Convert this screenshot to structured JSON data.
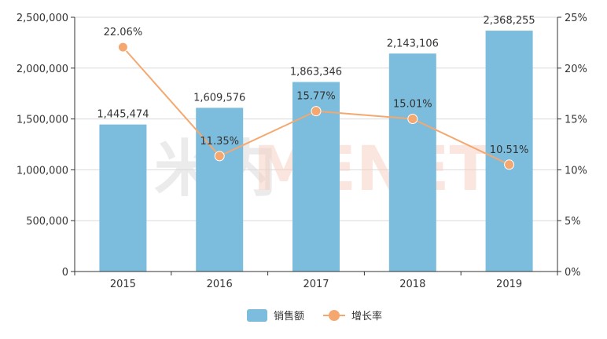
{
  "watermark": {
    "cn": "米内",
    "en": "MENET"
  },
  "legend": {
    "bar": "销售额",
    "line": "增长率"
  },
  "colors": {
    "bar": "#7cbcdc",
    "line": "#f4a870",
    "axis": "#333333",
    "grid": "#d9d9d9"
  },
  "chart_data": {
    "type": "bar",
    "categories": [
      "2015",
      "2016",
      "2017",
      "2018",
      "2019"
    ],
    "series": [
      {
        "name": "销售额",
        "type": "bar",
        "axis": "left",
        "values": [
          1445474,
          1609576,
          1863346,
          2143106,
          2368255
        ],
        "labels": [
          "1,445,474",
          "1,609,576",
          "1,863,346",
          "2,143,106",
          "2,368,255"
        ]
      },
      {
        "name": "增长率",
        "type": "line",
        "axis": "right",
        "values": [
          22.06,
          11.35,
          15.77,
          15.01,
          10.51
        ],
        "labels": [
          "22.06%",
          "11.35%",
          "15.77%",
          "15.01%",
          "10.51%"
        ]
      }
    ],
    "y_left": {
      "min": 0,
      "max": 2500000,
      "ticks": [
        "0",
        "500,000",
        "1,000,000",
        "1,500,000",
        "2,000,000",
        "2,500,000"
      ]
    },
    "y_right": {
      "min": 0,
      "max": 25,
      "ticks": [
        "0%",
        "5%",
        "10%",
        "15%",
        "20%",
        "25%"
      ]
    },
    "grid": true,
    "legend_position": "bottom-center"
  }
}
